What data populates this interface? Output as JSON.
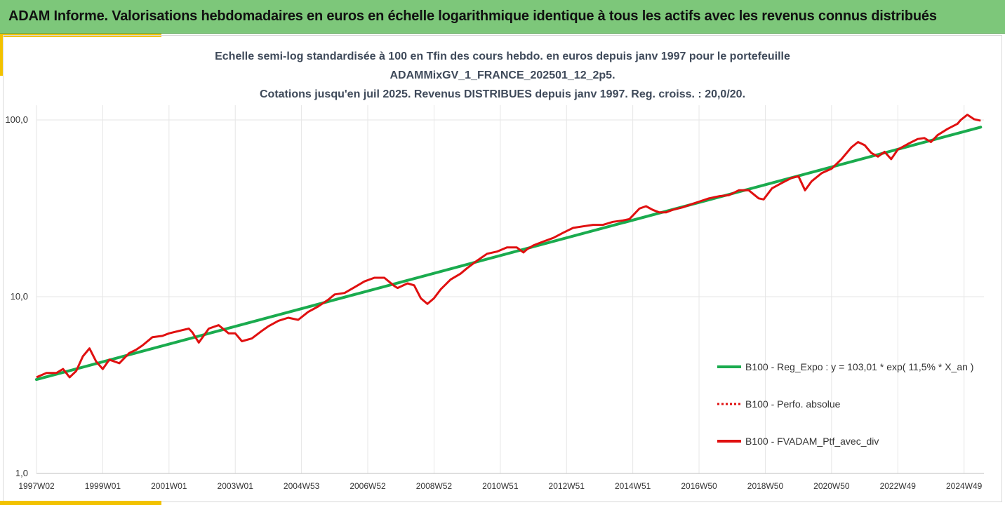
{
  "banner": {
    "title": "ADAM Informe. Valorisations hebdomadaires en euros en échelle logarithmique identique à tous les actifs avec les revenus connus distribués"
  },
  "colors": {
    "banner_bg": "#7dc77a",
    "accent": "#f2c200",
    "regression": "#1aab4e",
    "portfolio": "#e01010"
  },
  "chart_data": {
    "type": "line",
    "title_lines": [
      "Echelle semi-log standardisée à 100 en Tfin des cours hebdo.  en euros depuis janv 1997 pour le portefeuille",
      "ADAMMixGV_1_FRANCE_202501_12_2p5.",
      "Cotations  jusqu'en juil 2025. Revenus DISTRIBUES depuis janv 1997. Reg. croiss. : 20,0/20."
    ],
    "y_scale": "log",
    "ylim": [
      1,
      200
    ],
    "y_ticks": [
      {
        "value": 1,
        "label": "1,0"
      },
      {
        "value": 10,
        "label": "10,0"
      },
      {
        "value": 100,
        "label": "100,0"
      }
    ],
    "xlim": [
      1997.0,
      2025.6
    ],
    "x_ticks": [
      {
        "value": 1997.0,
        "label": "1997W02"
      },
      {
        "value": 1999.0,
        "label": "1999W01"
      },
      {
        "value": 2001.0,
        "label": "2001W01"
      },
      {
        "value": 2003.0,
        "label": "2003W01"
      },
      {
        "value": 2005.0,
        "label": "2004W53"
      },
      {
        "value": 2007.0,
        "label": "2006W52"
      },
      {
        "value": 2009.0,
        "label": "2008W52"
      },
      {
        "value": 2011.0,
        "label": "2010W51"
      },
      {
        "value": 2013.0,
        "label": "2012W51"
      },
      {
        "value": 2015.0,
        "label": "2014W51"
      },
      {
        "value": 2017.0,
        "label": "2016W50"
      },
      {
        "value": 2019.0,
        "label": "2018W50"
      },
      {
        "value": 2021.0,
        "label": "2020W50"
      },
      {
        "value": 2023.0,
        "label": "2022W49"
      },
      {
        "value": 2025.0,
        "label": "2024W49"
      }
    ],
    "grid": "vertical gridlines at each x tick, horizontal at each y decade",
    "legend_position": "bottom-right",
    "series": [
      {
        "name": "B100 - Reg_Expo : y = 103,01 * exp( 11,5% *  X_an )",
        "style": "solid",
        "color": "#1aab4e",
        "x": [
          1997.0,
          2025.5
        ],
        "y": [
          3.4,
          91
        ]
      },
      {
        "name": "B100 - Perfo. absolue",
        "style": "dotted",
        "color": "#e01010",
        "x": [],
        "y": []
      },
      {
        "name": "B100 - FVADAM_Ptf_avec_div",
        "style": "solid",
        "color": "#e01010",
        "x": [
          1997.0,
          1997.3,
          1997.6,
          1997.8,
          1998.0,
          1998.2,
          1998.4,
          1998.6,
          1998.8,
          1999.0,
          1999.2,
          1999.5,
          1999.8,
          2000.0,
          2000.2,
          2000.5,
          2000.8,
          2001.0,
          2001.3,
          2001.6,
          2001.7,
          2001.9,
          2002.2,
          2002.5,
          2002.8,
          2003.0,
          2003.2,
          2003.5,
          2003.8,
          2004.0,
          2004.3,
          2004.6,
          2004.9,
          2005.2,
          2005.5,
          2005.8,
          2006.0,
          2006.3,
          2006.6,
          2006.9,
          2007.2,
          2007.5,
          2007.8,
          2007.9,
          2008.2,
          2008.4,
          2008.6,
          2008.8,
          2009.0,
          2009.2,
          2009.5,
          2009.8,
          2010.0,
          2010.3,
          2010.6,
          2010.9,
          2011.2,
          2011.5,
          2011.7,
          2011.8,
          2012.0,
          2012.3,
          2012.6,
          2012.9,
          2013.2,
          2013.5,
          2013.8,
          2014.1,
          2014.4,
          2014.7,
          2014.9,
          2015.2,
          2015.4,
          2015.6,
          2015.8,
          2016.0,
          2016.2,
          2016.5,
          2016.8,
          2017.0,
          2017.3,
          2017.6,
          2017.9,
          2018.2,
          2018.5,
          2018.8,
          2018.95,
          2019.2,
          2019.5,
          2019.8,
          2020.0,
          2020.2,
          2020.4,
          2020.7,
          2021.0,
          2021.3,
          2021.6,
          2021.8,
          2022.0,
          2022.2,
          2022.4,
          2022.6,
          2022.8,
          2023.0,
          2023.3,
          2023.6,
          2023.8,
          2024.0,
          2024.2,
          2024.5,
          2024.8,
          2024.9,
          2025.1,
          2025.3,
          2025.5
        ],
        "y": [
          3.5,
          3.7,
          3.7,
          3.9,
          3.5,
          3.8,
          4.6,
          5.1,
          4.3,
          3.9,
          4.4,
          4.2,
          4.8,
          5.0,
          5.3,
          5.9,
          6.0,
          6.2,
          6.4,
          6.6,
          6.3,
          5.5,
          6.6,
          6.9,
          6.2,
          6.2,
          5.6,
          5.8,
          6.4,
          6.8,
          7.3,
          7.6,
          7.4,
          8.2,
          8.8,
          9.6,
          10.3,
          10.5,
          11.3,
          12.2,
          12.8,
          12.8,
          11.5,
          11.2,
          11.9,
          11.6,
          9.8,
          9.1,
          9.8,
          11.0,
          12.5,
          13.5,
          14.5,
          16.0,
          17.5,
          18.0,
          19.0,
          19.0,
          17.8,
          18.5,
          19.5,
          20.5,
          21.5,
          23.0,
          24.5,
          25.0,
          25.5,
          25.5,
          26.5,
          27.0,
          27.5,
          31.5,
          32.5,
          31.0,
          30.0,
          30.0,
          31.0,
          32.0,
          33.5,
          34.5,
          36.0,
          37.0,
          37.5,
          40.0,
          40.0,
          36.0,
          35.5,
          41.0,
          44.0,
          47.0,
          48.0,
          40.0,
          45.0,
          50.0,
          53.0,
          60.0,
          70.0,
          75.0,
          72.0,
          65.0,
          62.0,
          66.0,
          60.0,
          68.0,
          73.0,
          78.0,
          79.0,
          75.0,
          82.0,
          89.0,
          95.0,
          100.0,
          107.0,
          101.0,
          99.0
        ]
      }
    ]
  }
}
